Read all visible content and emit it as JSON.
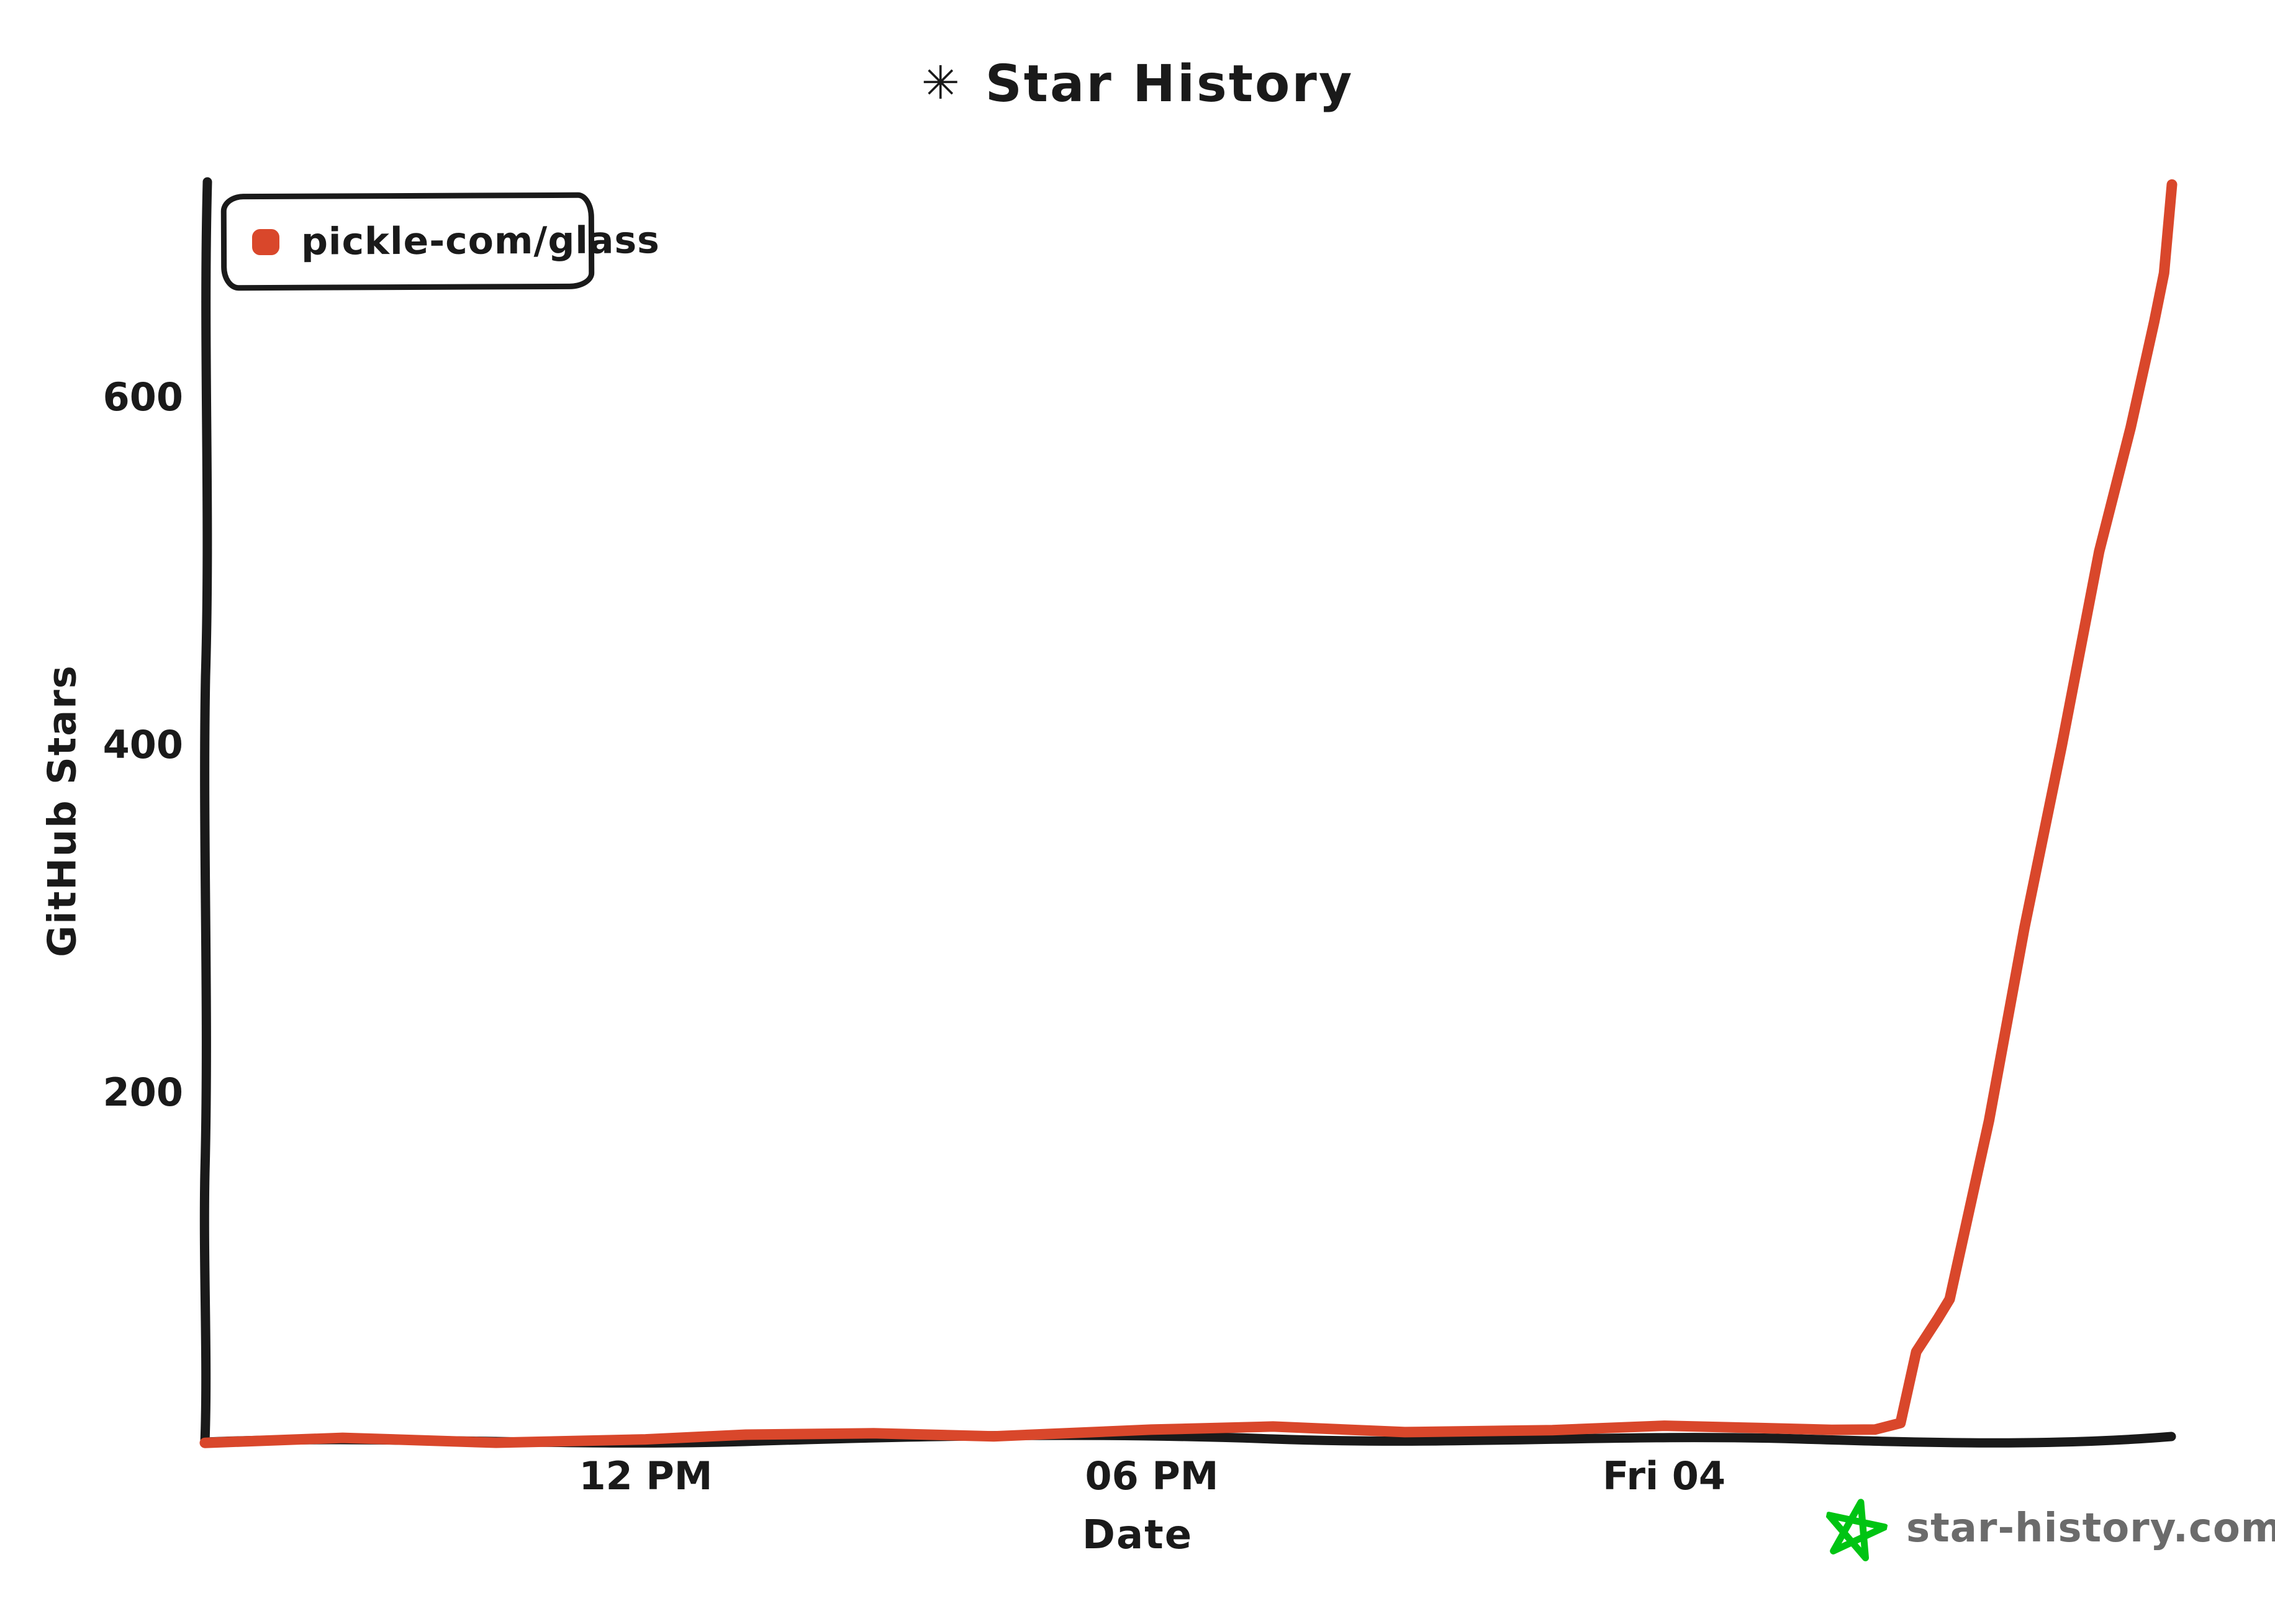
{
  "title": {
    "icon": "✳",
    "text": "Star History"
  },
  "legend": {
    "label": "pickle-com/glass"
  },
  "axes": {
    "y_title": "GitHub Stars",
    "x_title": "Date"
  },
  "watermark": {
    "text": "star-history.com"
  },
  "colors": {
    "series": "#d9472b",
    "axis": "#1a1a1a",
    "watermark_star": "#00c413",
    "watermark_text": "#6b6b6b"
  },
  "chart_data": {
    "type": "line",
    "title": "Star History",
    "xlabel": "Date",
    "ylabel": "GitHub Stars",
    "grid": false,
    "legend_position": "top-left",
    "ylim": [
      0,
      730
    ],
    "y_ticks": [
      200,
      400,
      600
    ],
    "x_ticks": [
      {
        "label": "12 PM",
        "pos": 0.224
      },
      {
        "label": "06 PM",
        "pos": 0.481
      },
      {
        "label": "Fri 04",
        "pos": 0.742
      }
    ],
    "series": [
      {
        "name": "pickle-com/glass",
        "color": "#d9472b",
        "points": [
          {
            "t": "Thu ~07:00",
            "pos": 0.0,
            "stars": 0
          },
          {
            "t": "Thu ~08:30",
            "pos": 0.07,
            "stars": 1
          },
          {
            "t": "Thu ~10:30",
            "pos": 0.148,
            "stars": 1
          },
          {
            "t": "Thu 12:00",
            "pos": 0.224,
            "stars": 2
          },
          {
            "t": "Thu ~13:10",
            "pos": 0.275,
            "stars": 2
          },
          {
            "t": "Thu ~14:40",
            "pos": 0.34,
            "stars": 3
          },
          {
            "t": "Thu ~16:10",
            "pos": 0.401,
            "stars": 3
          },
          {
            "t": "Thu 18:00",
            "pos": 0.481,
            "stars": 4
          },
          {
            "t": "Thu ~19:30",
            "pos": 0.543,
            "stars": 5
          },
          {
            "t": "Thu ~21:00",
            "pos": 0.61,
            "stars": 5
          },
          {
            "t": "Thu ~22:45",
            "pos": 0.685,
            "stars": 6
          },
          {
            "t": "Fri 00:00",
            "pos": 0.742,
            "stars": 7
          },
          {
            "t": "Fri ~01:05",
            "pos": 0.79,
            "stars": 7
          },
          {
            "t": "Fri ~02:00",
            "pos": 0.827,
            "stars": 8
          },
          {
            "t": "Fri ~02:30",
            "pos": 0.849,
            "stars": 9
          },
          {
            "t": "Fri ~02:50",
            "pos": 0.862,
            "stars": 13
          },
          {
            "t": "Fri ~03:00",
            "pos": 0.87,
            "stars": 54
          },
          {
            "t": "Fri ~03:15",
            "pos": 0.881,
            "stars": 73
          },
          {
            "t": "Fri ~03:25",
            "pos": 0.887,
            "stars": 84
          },
          {
            "t": "Fri ~03:55",
            "pos": 0.907,
            "stars": 186
          },
          {
            "t": "Fri ~04:20",
            "pos": 0.925,
            "stars": 296
          },
          {
            "t": "Fri ~04:45",
            "pos": 0.944,
            "stars": 400
          },
          {
            "t": "Fri ~05:10",
            "pos": 0.963,
            "stars": 511
          },
          {
            "t": "Fri ~05:35",
            "pos": 0.979,
            "stars": 582
          },
          {
            "t": "Fri ~05:50",
            "pos": 0.991,
            "stars": 643
          },
          {
            "t": "Fri ~05:57",
            "pos": 0.996,
            "stars": 671
          },
          {
            "t": "Fri ~06:00",
            "pos": 1.0,
            "stars": 722
          }
        ]
      }
    ]
  }
}
